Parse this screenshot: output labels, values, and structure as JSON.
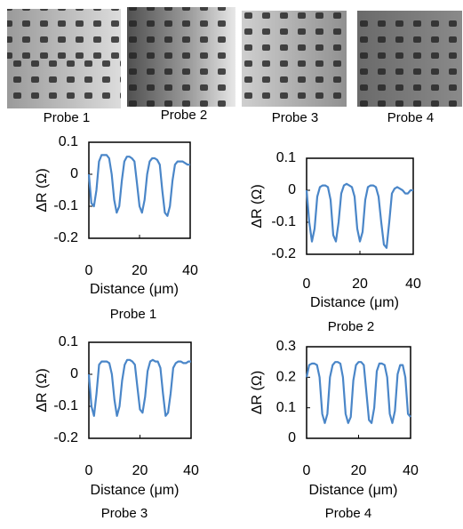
{
  "images": [
    {
      "label": "Probe 1"
    },
    {
      "label": "Probe 2"
    },
    {
      "label": "Probe 3"
    },
    {
      "label": "Probe 4"
    }
  ],
  "chart_data": [
    {
      "type": "line",
      "caption": "Probe 1",
      "xlabel": "Distance (μm)",
      "ylabel": "ΔR (Ω)",
      "color": "#4a86c8",
      "x": [
        0,
        1,
        2,
        3,
        4,
        5,
        6,
        7,
        8,
        9,
        10,
        11,
        12,
        13,
        14,
        15,
        16,
        17,
        18,
        19,
        20,
        21,
        22,
        23,
        24,
        25,
        26,
        27,
        28,
        29,
        30,
        31,
        32,
        33,
        34,
        35,
        36,
        37,
        38,
        39,
        40
      ],
      "values": [
        0,
        -0.09,
        -0.1,
        -0.05,
        0.04,
        0.06,
        0.06,
        0.06,
        0.05,
        0,
        -0.08,
        -0.12,
        -0.1,
        -0.02,
        0.04,
        0.055,
        0.055,
        0.05,
        0.04,
        -0.03,
        -0.1,
        -0.12,
        -0.08,
        0,
        0.04,
        0.05,
        0.05,
        0.045,
        0.03,
        -0.05,
        -0.12,
        -0.13,
        -0.1,
        -0.02,
        0.03,
        0.04,
        0.04,
        0.04,
        0.035,
        0.03,
        0.03
      ],
      "xlim": [
        0,
        40
      ],
      "xticks": [
        0,
        20,
        40
      ],
      "ylim": [
        -0.2,
        0.1
      ],
      "yticks": [
        -0.2,
        -0.1,
        0,
        0.1
      ]
    },
    {
      "type": "line",
      "caption": "Probe 2",
      "xlabel": "Distance (μm)",
      "ylabel": "ΔR (Ω)",
      "color": "#4a86c8",
      "x": [
        0,
        1,
        2,
        3,
        4,
        5,
        6,
        7,
        8,
        9,
        10,
        11,
        12,
        13,
        14,
        15,
        16,
        17,
        18,
        19,
        20,
        21,
        22,
        23,
        24,
        25,
        26,
        27,
        28,
        29,
        30,
        31,
        32,
        33,
        34,
        35,
        36,
        37,
        38,
        39,
        40
      ],
      "values": [
        0,
        -0.1,
        -0.16,
        -0.12,
        -0.02,
        0.01,
        0.015,
        0.015,
        0.01,
        -0.03,
        -0.14,
        -0.16,
        -0.1,
        -0.01,
        0.015,
        0.02,
        0.015,
        0.01,
        -0.02,
        -0.12,
        -0.16,
        -0.13,
        -0.03,
        0.01,
        0.015,
        0.015,
        0.01,
        -0.02,
        -0.1,
        -0.17,
        -0.18,
        -0.1,
        -0.01,
        0.005,
        0.01,
        0.005,
        0,
        -0.01,
        -0.01,
        0,
        0
      ],
      "xlim": [
        0,
        40
      ],
      "xticks": [
        0,
        20,
        40
      ],
      "ylim": [
        -0.2,
        0.1
      ],
      "yticks": [
        -0.2,
        -0.1,
        0,
        0.1
      ]
    },
    {
      "type": "line",
      "caption": "Probe 3",
      "xlabel": "Distance (μm)",
      "ylabel": "ΔR (Ω)",
      "color": "#4a86c8",
      "x": [
        0,
        1,
        2,
        3,
        4,
        5,
        6,
        7,
        8,
        9,
        10,
        11,
        12,
        13,
        14,
        15,
        16,
        17,
        18,
        19,
        20,
        21,
        22,
        23,
        24,
        25,
        26,
        27,
        28,
        29,
        30,
        31,
        32,
        33,
        34,
        35,
        36,
        37,
        38,
        39,
        40
      ],
      "values": [
        0,
        -0.1,
        -0.13,
        -0.06,
        0.03,
        0.04,
        0.04,
        0.04,
        0.035,
        0,
        -0.08,
        -0.13,
        -0.1,
        -0.02,
        0.03,
        0.045,
        0.045,
        0.04,
        0.03,
        -0.04,
        -0.11,
        -0.12,
        -0.07,
        0.01,
        0.04,
        0.045,
        0.04,
        0.04,
        0.02,
        -0.06,
        -0.13,
        -0.12,
        -0.06,
        0.02,
        0.035,
        0.04,
        0.04,
        0.035,
        0.035,
        0.04,
        0.04
      ],
      "xlim": [
        0,
        40
      ],
      "xticks": [
        0,
        20,
        40
      ],
      "ylim": [
        -0.2,
        0.1
      ],
      "yticks": [
        -0.2,
        -0.1,
        0,
        0.1
      ]
    },
    {
      "type": "line",
      "caption": "Probe 4",
      "xlabel": "Distance (μm)",
      "ylabel": "ΔR (Ω)",
      "color": "#4a86c8",
      "x": [
        0,
        1,
        2,
        3,
        4,
        5,
        6,
        7,
        8,
        9,
        10,
        11,
        12,
        13,
        14,
        15,
        16,
        17,
        18,
        19,
        20,
        21,
        22,
        23,
        24,
        25,
        26,
        27,
        28,
        29,
        30,
        31,
        32,
        33,
        34,
        35,
        36,
        37,
        38,
        39,
        40
      ],
      "values": [
        0.2,
        0.24,
        0.245,
        0.245,
        0.24,
        0.2,
        0.08,
        0.05,
        0.08,
        0.2,
        0.24,
        0.25,
        0.25,
        0.245,
        0.2,
        0.08,
        0.05,
        0.07,
        0.19,
        0.24,
        0.25,
        0.25,
        0.24,
        0.15,
        0.06,
        0.05,
        0.1,
        0.22,
        0.245,
        0.245,
        0.24,
        0.2,
        0.08,
        0.05,
        0.09,
        0.21,
        0.24,
        0.24,
        0.2,
        0.08,
        0.07
      ],
      "xlim": [
        0,
        40
      ],
      "xticks": [
        0,
        20,
        40
      ],
      "ylim": [
        0,
        0.3
      ],
      "yticks": [
        0,
        0.1,
        0.2,
        0.3
      ]
    }
  ]
}
